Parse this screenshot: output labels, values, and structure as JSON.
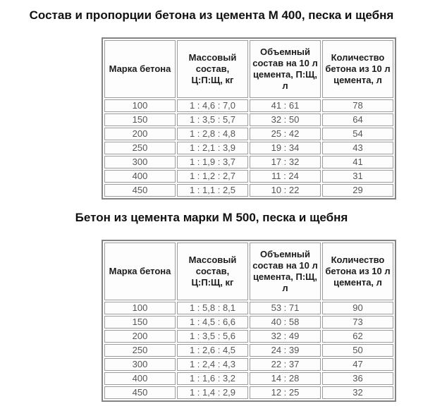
{
  "colors": {
    "background": "#ffffff",
    "title_text": "#111111",
    "header_text": "#1c1c1c",
    "cell_text": "#565656",
    "outer_border": "#848484",
    "cell_border": "#9c9c9c"
  },
  "sections": [
    {
      "title": "Состав и пропорции бетона из цемента М 400, песка и щебня",
      "table": {
        "headers": [
          "Марка бетона",
          "Массовый состав, Ц:П:Щ, кг",
          "Объемный состав на 10 л цемента, П:Щ, л",
          "Количество бетона из 10 л цемента, л"
        ],
        "rows": [
          [
            "100",
            "1 : 4,6 : 7,0",
            "41 : 61",
            "78"
          ],
          [
            "150",
            "1 : 3,5 : 5,7",
            "32 : 50",
            "64"
          ],
          [
            "200",
            "1 : 2,8 : 4,8",
            "25 : 42",
            "54"
          ],
          [
            "250",
            "1 : 2,1 : 3,9",
            "19 : 34",
            "43"
          ],
          [
            "300",
            "1 : 1,9 : 3,7",
            "17 : 32",
            "41"
          ],
          [
            "400",
            "1 : 1,2 : 2,7",
            "11 : 24",
            "31"
          ],
          [
            "450",
            "1 : 1,1 : 2,5",
            "10 : 22",
            "29"
          ]
        ]
      }
    },
    {
      "title": "Бетон из цемента марки М 500, песка и щебня",
      "table": {
        "headers": [
          "Марка бетона",
          "Массовый состав, Ц:П:Щ, кг",
          "Объемный состав на 10 л цемента, П:Щ, л",
          "Количество бетона из 10 л цемента, л"
        ],
        "rows": [
          [
            "100",
            "1 : 5,8 : 8,1",
            "53 : 71",
            "90"
          ],
          [
            "150",
            "1 : 4,5 : 6,6",
            "40 : 58",
            "73"
          ],
          [
            "200",
            "1 : 3,5 : 5,6",
            "32 : 49",
            "62"
          ],
          [
            "250",
            "1 : 2,6 : 4,5",
            "24 : 39",
            "50"
          ],
          [
            "300",
            "1 : 2,4 : 4,3",
            "22 : 37",
            "47"
          ],
          [
            "400",
            "1 : 1,6 : 3,2",
            "14 : 28",
            "36"
          ],
          [
            "450",
            "1 : 1,4 : 2,9",
            "12 : 25",
            "32"
          ]
        ]
      }
    }
  ]
}
